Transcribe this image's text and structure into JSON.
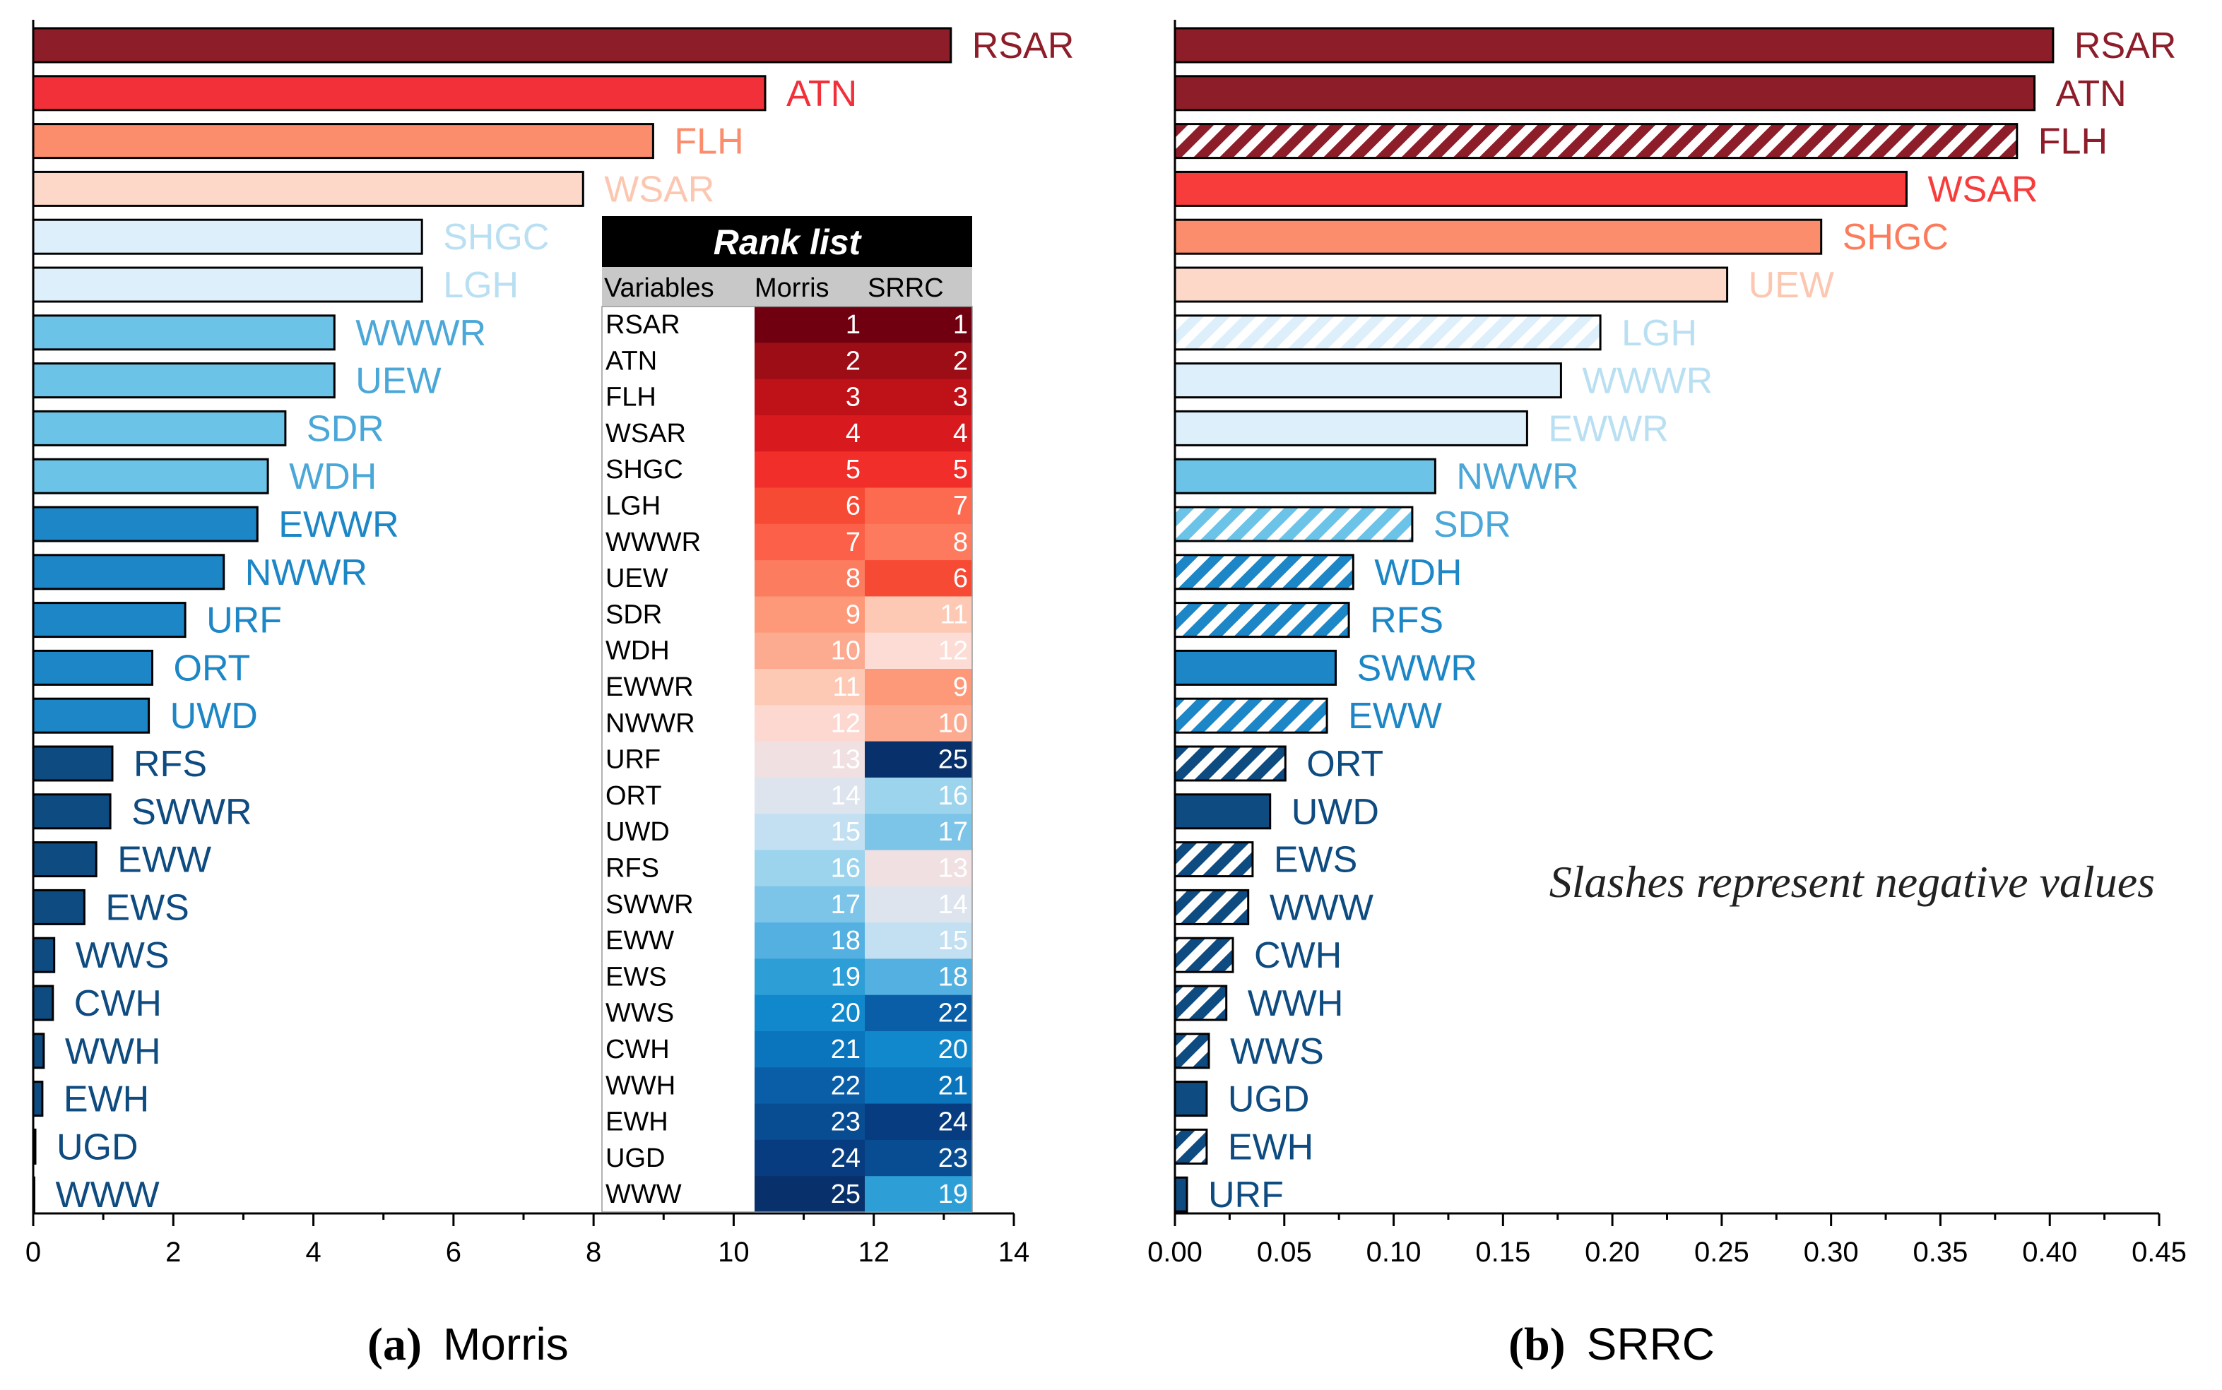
{
  "chart_data": [
    {
      "type": "bar",
      "orientation": "horizontal",
      "caption_letter": "(a)",
      "caption_text": "Morris",
      "xlim": [
        0,
        14
      ],
      "xticks": [
        "0",
        "2",
        "4",
        "6",
        "8",
        "10",
        "12",
        "14"
      ],
      "categories": [
        "RSAR",
        "ATN",
        "FLH",
        "WSAR",
        "SHGC",
        "LGH",
        "WWWR",
        "UEW",
        "SDR",
        "WDH",
        "EWWR",
        "NWWR",
        "URF",
        "ORT",
        "UWD",
        "RFS",
        "SWWR",
        "EWW",
        "EWS",
        "WWS",
        "CWH",
        "WWH",
        "EWH",
        "UGD",
        "WWW"
      ],
      "values": [
        13.1,
        10.45,
        8.85,
        7.85,
        5.55,
        5.55,
        4.3,
        4.3,
        3.6,
        3.35,
        3.2,
        2.72,
        2.17,
        1.7,
        1.65,
        1.13,
        1.1,
        0.9,
        0.73,
        0.3,
        0.28,
        0.15,
        0.13,
        0.03,
        0.01
      ],
      "colors": [
        "#8e1d2a",
        "#f2303a",
        "#fb8c6c",
        "#fdd8c8",
        "#dceffa",
        "#dceffa",
        "#6cc3e8",
        "#6cc3e8",
        "#6cc3e8",
        "#6cc3e8",
        "#1c86c6",
        "#1c86c6",
        "#1c86c6",
        "#1c86c6",
        "#1c86c6",
        "#0d4b80",
        "#0d4b80",
        "#0d4b80",
        "#0d4b80",
        "#0d4b80",
        "#0d4b80",
        "#0d4b80",
        "#0d4b80",
        "#0d4b80",
        "#0d4b80"
      ],
      "label_colors": [
        "#8e1d2a",
        "#f2303a",
        "#fb8c6c",
        "#fcc7b0",
        "#b9dff2",
        "#b9dff2",
        "#4aa7d8",
        "#4aa7d8",
        "#4aa7d8",
        "#4aa7d8",
        "#1c86c6",
        "#1c86c6",
        "#1c86c6",
        "#1c86c6",
        "#1c86c6",
        "#0d4b80",
        "#0d4b80",
        "#0d4b80",
        "#0d4b80",
        "#0d4b80",
        "#0d4b80",
        "#0d4b80",
        "#0d4b80",
        "#0d4b80",
        "#0d4b80"
      ]
    },
    {
      "type": "bar",
      "orientation": "horizontal",
      "caption_letter": "(b)",
      "caption_text": "SRRC",
      "xlim": [
        0,
        0.45
      ],
      "xticks": [
        "0.00",
        "0.05",
        "0.10",
        "0.15",
        "0.20",
        "0.25",
        "0.30",
        "0.35",
        "0.40",
        "0.45"
      ],
      "note": "Slashes represent negative values",
      "categories": [
        "RSAR",
        "ATN",
        "FLH",
        "WSAR",
        "SHGC",
        "UEW",
        "LGH",
        "WWWR",
        "EWWR",
        "NWWR",
        "SDR",
        "WDH",
        "RFS",
        "SWWR",
        "EWW",
        "ORT",
        "UWD",
        "EWS",
        "WWW",
        "CWH",
        "WWH",
        "WWS",
        "UGD",
        "EWH",
        "URF"
      ],
      "values": [
        0.4015,
        0.393,
        0.385,
        0.3345,
        0.2955,
        0.2525,
        0.1945,
        0.1765,
        0.161,
        0.119,
        0.1085,
        0.0815,
        0.0795,
        0.0735,
        0.0695,
        0.0505,
        0.0435,
        0.0355,
        0.0335,
        0.0265,
        0.0235,
        0.0155,
        0.0145,
        0.0145,
        0.0055
      ],
      "negative": [
        false,
        false,
        true,
        false,
        false,
        false,
        true,
        false,
        false,
        false,
        true,
        true,
        true,
        false,
        true,
        true,
        false,
        true,
        true,
        true,
        true,
        true,
        false,
        true,
        false
      ],
      "colors": [
        "#8e1d2a",
        "#8e1d2a",
        "#8e1d2a",
        "#f83c3c",
        "#fb8c6c",
        "#fdd8c8",
        "#dceffa",
        "#dceffa",
        "#dceffa",
        "#6cc3e8",
        "#6cc3e8",
        "#1c86c6",
        "#1c86c6",
        "#1c86c6",
        "#1c86c6",
        "#0d4b80",
        "#0d4b80",
        "#0d4b80",
        "#0d4b80",
        "#0d4b80",
        "#0d4b80",
        "#0d4b80",
        "#0d4b80",
        "#0d4b80",
        "#0d4b80"
      ],
      "label_colors": [
        "#8e1d2a",
        "#8e1d2a",
        "#8e1d2a",
        "#f83c3c",
        "#fb7c5c",
        "#fcc7b0",
        "#b9dff2",
        "#b9dff2",
        "#b9dff2",
        "#4aa7d8",
        "#4aa7d8",
        "#1c86c6",
        "#1c86c6",
        "#1c86c6",
        "#1c86c6",
        "#0d4b80",
        "#0d4b80",
        "#0d4b80",
        "#0d4b80",
        "#0d4b80",
        "#0d4b80",
        "#0d4b80",
        "#0d4b80",
        "#0d4b80",
        "#0d4b80"
      ]
    }
  ],
  "rank_list": {
    "title": "Rank list",
    "headers": [
      "Variables",
      "Morris",
      "SRRC"
    ],
    "rows": [
      {
        "var": "RSAR",
        "morris": 1,
        "srrc": 1,
        "mc": "#700010",
        "sc": "#700010"
      },
      {
        "var": "ATN",
        "morris": 2,
        "srrc": 2,
        "mc": "#9c0d16",
        "sc": "#9c0d16"
      },
      {
        "var": "FLH",
        "morris": 3,
        "srrc": 3,
        "mc": "#be1218",
        "sc": "#be1218"
      },
      {
        "var": "WSAR",
        "morris": 4,
        "srrc": 4,
        "mc": "#d8191e",
        "sc": "#d8191e"
      },
      {
        "var": "SHGC",
        "morris": 5,
        "srrc": 5,
        "mc": "#f22e2a",
        "sc": "#f22e2a"
      },
      {
        "var": "LGH",
        "morris": 6,
        "srrc": 7,
        "mc": "#f74a34",
        "sc": "#fc6a50"
      },
      {
        "var": "WWWR",
        "morris": 7,
        "srrc": 8,
        "mc": "#fc6048",
        "sc": "#fd7a5e"
      },
      {
        "var": "UEW",
        "morris": 8,
        "srrc": 6,
        "mc": "#fc7c60",
        "sc": "#f74a34"
      },
      {
        "var": "SDR",
        "morris": 9,
        "srrc": 11,
        "mc": "#fd9878",
        "sc": "#fdc9b4"
      },
      {
        "var": "WDH",
        "morris": 10,
        "srrc": 12,
        "mc": "#fdab90",
        "sc": "#fcdcd4"
      },
      {
        "var": "EWWR",
        "morris": 11,
        "srrc": 9,
        "mc": "#fdc9b4",
        "sc": "#fd9878"
      },
      {
        "var": "NWWR",
        "morris": 12,
        "srrc": 10,
        "mc": "#fcd8d0",
        "sc": "#fdab90"
      },
      {
        "var": "URF",
        "morris": 13,
        "srrc": 25,
        "mc": "#f0e0e2",
        "sc": "#08306b"
      },
      {
        "var": "ORT",
        "morris": 14,
        "srrc": 16,
        "mc": "#dde4ee",
        "sc": "#9cd4ee"
      },
      {
        "var": "UWD",
        "morris": 15,
        "srrc": 17,
        "mc": "#c2e0f2",
        "sc": "#7cc4e8"
      },
      {
        "var": "RFS",
        "morris": 16,
        "srrc": 13,
        "mc": "#9cd4ee",
        "sc": "#f0e0e2"
      },
      {
        "var": "SWWR",
        "morris": 17,
        "srrc": 14,
        "mc": "#7cc4e8",
        "sc": "#dde4ee"
      },
      {
        "var": "EWW",
        "morris": 18,
        "srrc": 15,
        "mc": "#54b0e0",
        "sc": "#c2e0f2"
      },
      {
        "var": "EWS",
        "morris": 19,
        "srrc": 18,
        "mc": "#2e9ed6",
        "sc": "#54b0e0"
      },
      {
        "var": "WWS",
        "morris": 20,
        "srrc": 22,
        "mc": "#1288cc",
        "sc": "#0a5ea8"
      },
      {
        "var": "CWH",
        "morris": 21,
        "srrc": 20,
        "mc": "#0a74bc",
        "sc": "#1288cc"
      },
      {
        "var": "WWH",
        "morris": 22,
        "srrc": 21,
        "mc": "#0a5ea8",
        "sc": "#0a74bc"
      },
      {
        "var": "EWH",
        "morris": 23,
        "srrc": 24,
        "mc": "#084c92",
        "sc": "#073c80"
      },
      {
        "var": "UGD",
        "morris": 24,
        "srrc": 23,
        "mc": "#073c80",
        "sc": "#084c92"
      },
      {
        "var": "WWW",
        "morris": 25,
        "srrc": 19,
        "mc": "#08306b",
        "sc": "#2e9ed6"
      }
    ]
  }
}
